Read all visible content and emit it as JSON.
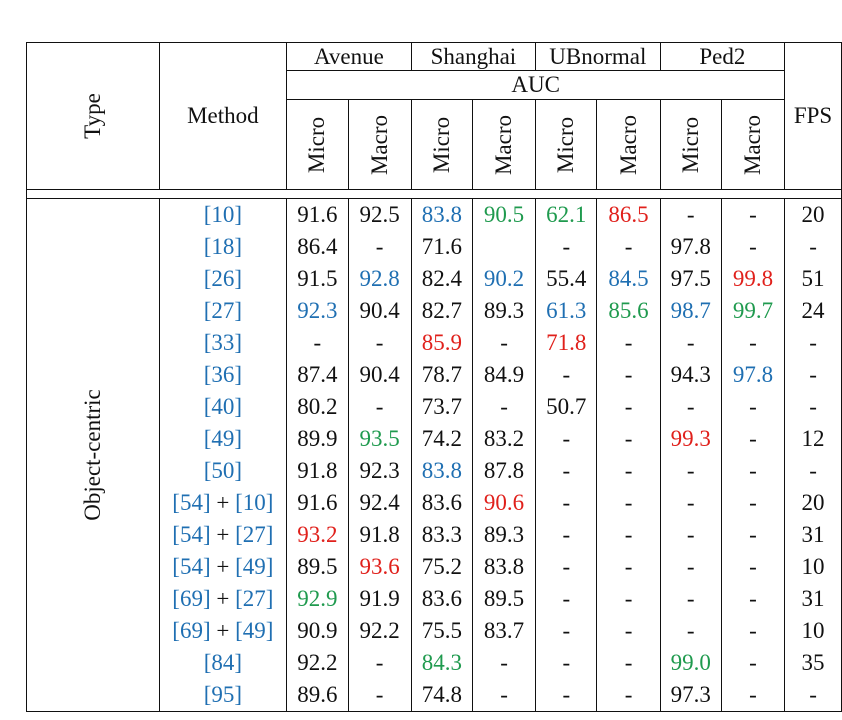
{
  "colors": {
    "best": "#e0201b",
    "second": "#1f9a4e",
    "third": "#1f6fb2",
    "citation": "#1f6fb2",
    "text": "#111111"
  },
  "header": {
    "type_label": "Type",
    "method_label": "Method",
    "metric_label": "AUC",
    "fps_label": "FPS",
    "datasets": [
      "Avenue",
      "Shanghai",
      "UBnormal",
      "Ped2"
    ],
    "sub_labels": [
      "Micro",
      "Macro",
      "Micro",
      "Macro",
      "Micro",
      "Macro",
      "Micro",
      "Macro"
    ]
  },
  "group": {
    "label": "Object-centric"
  },
  "rows": [
    {
      "method": [
        {
          "t": "[10]",
          "c": "cite"
        }
      ],
      "cells": [
        {
          "v": "91.6"
        },
        {
          "v": "92.5"
        },
        {
          "v": "83.8",
          "c": "blue"
        },
        {
          "v": "90.5",
          "c": "green"
        },
        {
          "v": "62.1",
          "c": "green"
        },
        {
          "v": "86.5",
          "c": "red"
        },
        {
          "v": "-"
        },
        {
          "v": "-"
        },
        {
          "v": "20"
        }
      ]
    },
    {
      "method": [
        {
          "t": "[18]",
          "c": "cite"
        }
      ],
      "cells": [
        {
          "v": "86.4"
        },
        {
          "v": "-"
        },
        {
          "v": "71.6"
        },
        {
          "v": ""
        },
        {
          "v": "-"
        },
        {
          "v": "-"
        },
        {
          "v": "97.8"
        },
        {
          "v": "-"
        },
        {
          "v": "-"
        }
      ]
    },
    {
      "method": [
        {
          "t": "[26]",
          "c": "cite"
        }
      ],
      "cells": [
        {
          "v": "91.5"
        },
        {
          "v": "92.8",
          "c": "blue"
        },
        {
          "v": "82.4"
        },
        {
          "v": "90.2",
          "c": "blue"
        },
        {
          "v": "55.4"
        },
        {
          "v": "84.5",
          "c": "blue"
        },
        {
          "v": "97.5"
        },
        {
          "v": "99.8",
          "c": "red"
        },
        {
          "v": "51"
        }
      ]
    },
    {
      "method": [
        {
          "t": "[27]",
          "c": "cite"
        }
      ],
      "cells": [
        {
          "v": "92.3",
          "c": "blue"
        },
        {
          "v": "90.4"
        },
        {
          "v": "82.7"
        },
        {
          "v": "89.3"
        },
        {
          "v": "61.3",
          "c": "blue"
        },
        {
          "v": "85.6",
          "c": "green"
        },
        {
          "v": "98.7",
          "c": "blue"
        },
        {
          "v": "99.7",
          "c": "green"
        },
        {
          "v": "24"
        }
      ]
    },
    {
      "method": [
        {
          "t": "[33]",
          "c": "cite"
        }
      ],
      "cells": [
        {
          "v": "-"
        },
        {
          "v": "-"
        },
        {
          "v": "85.9",
          "c": "red"
        },
        {
          "v": "-"
        },
        {
          "v": "71.8",
          "c": "red"
        },
        {
          "v": "-"
        },
        {
          "v": "-"
        },
        {
          "v": "-"
        },
        {
          "v": "-"
        }
      ]
    },
    {
      "method": [
        {
          "t": "[36]",
          "c": "cite"
        }
      ],
      "cells": [
        {
          "v": "87.4"
        },
        {
          "v": "90.4"
        },
        {
          "v": "78.7"
        },
        {
          "v": "84.9"
        },
        {
          "v": "-"
        },
        {
          "v": "-"
        },
        {
          "v": "94.3"
        },
        {
          "v": "97.8",
          "c": "blue"
        },
        {
          "v": "-"
        }
      ]
    },
    {
      "method": [
        {
          "t": "[40]",
          "c": "cite"
        }
      ],
      "cells": [
        {
          "v": "80.2"
        },
        {
          "v": "-"
        },
        {
          "v": "73.7"
        },
        {
          "v": "-"
        },
        {
          "v": "50.7"
        },
        {
          "v": "-"
        },
        {
          "v": "-"
        },
        {
          "v": "-"
        },
        {
          "v": "-"
        }
      ]
    },
    {
      "method": [
        {
          "t": "[49]",
          "c": "cite"
        }
      ],
      "cells": [
        {
          "v": "89.9"
        },
        {
          "v": "93.5",
          "c": "green"
        },
        {
          "v": "74.2"
        },
        {
          "v": "83.2"
        },
        {
          "v": "-"
        },
        {
          "v": "-"
        },
        {
          "v": "99.3",
          "c": "red"
        },
        {
          "v": "-"
        },
        {
          "v": "12"
        }
      ]
    },
    {
      "method": [
        {
          "t": "[50]",
          "c": "cite"
        }
      ],
      "cells": [
        {
          "v": "91.8"
        },
        {
          "v": "92.3"
        },
        {
          "v": "83.8",
          "c": "blue"
        },
        {
          "v": "87.8"
        },
        {
          "v": "-"
        },
        {
          "v": "-"
        },
        {
          "v": "-"
        },
        {
          "v": "-"
        },
        {
          "v": "-"
        }
      ]
    },
    {
      "method": [
        {
          "t": "[54]",
          "c": "cite"
        },
        {
          "t": " + "
        },
        {
          "t": "[10]",
          "c": "cite"
        }
      ],
      "cells": [
        {
          "v": "91.6"
        },
        {
          "v": "92.4"
        },
        {
          "v": "83.6"
        },
        {
          "v": "90.6",
          "c": "red"
        },
        {
          "v": "-"
        },
        {
          "v": "-"
        },
        {
          "v": "-"
        },
        {
          "v": "-"
        },
        {
          "v": "20"
        }
      ]
    },
    {
      "method": [
        {
          "t": "[54]",
          "c": "cite"
        },
        {
          "t": " + "
        },
        {
          "t": "[27]",
          "c": "cite"
        }
      ],
      "cells": [
        {
          "v": "93.2",
          "c": "red"
        },
        {
          "v": "91.8"
        },
        {
          "v": "83.3"
        },
        {
          "v": "89.3"
        },
        {
          "v": "-"
        },
        {
          "v": "-"
        },
        {
          "v": "-"
        },
        {
          "v": "-"
        },
        {
          "v": "31"
        }
      ]
    },
    {
      "method": [
        {
          "t": "[54]",
          "c": "cite"
        },
        {
          "t": " + "
        },
        {
          "t": "[49]",
          "c": "cite"
        }
      ],
      "cells": [
        {
          "v": "89.5"
        },
        {
          "v": "93.6",
          "c": "red"
        },
        {
          "v": "75.2"
        },
        {
          "v": "83.8"
        },
        {
          "v": "-"
        },
        {
          "v": "-"
        },
        {
          "v": "-"
        },
        {
          "v": "-"
        },
        {
          "v": "10"
        }
      ]
    },
    {
      "method": [
        {
          "t": "[69]",
          "c": "cite"
        },
        {
          "t": " + "
        },
        {
          "t": "[27]",
          "c": "cite"
        }
      ],
      "cells": [
        {
          "v": "92.9",
          "c": "green"
        },
        {
          "v": "91.9"
        },
        {
          "v": "83.6"
        },
        {
          "v": "89.5"
        },
        {
          "v": "-"
        },
        {
          "v": "-"
        },
        {
          "v": "-"
        },
        {
          "v": "-"
        },
        {
          "v": "31"
        }
      ]
    },
    {
      "method": [
        {
          "t": "[69]",
          "c": "cite"
        },
        {
          "t": " + "
        },
        {
          "t": "[49]",
          "c": "cite"
        }
      ],
      "cells": [
        {
          "v": "90.9"
        },
        {
          "v": "92.2"
        },
        {
          "v": "75.5"
        },
        {
          "v": "83.7"
        },
        {
          "v": "-"
        },
        {
          "v": "-"
        },
        {
          "v": "-"
        },
        {
          "v": "-"
        },
        {
          "v": "10"
        }
      ]
    },
    {
      "method": [
        {
          "t": "[84]",
          "c": "cite"
        }
      ],
      "cells": [
        {
          "v": "92.2"
        },
        {
          "v": "-"
        },
        {
          "v": "84.3",
          "c": "green"
        },
        {
          "v": "-"
        },
        {
          "v": "-"
        },
        {
          "v": "-"
        },
        {
          "v": "99.0",
          "c": "green"
        },
        {
          "v": "-"
        },
        {
          "v": "35"
        }
      ]
    },
    {
      "method": [
        {
          "t": "[95]",
          "c": "cite"
        }
      ],
      "cells": [
        {
          "v": "89.6"
        },
        {
          "v": "-"
        },
        {
          "v": "74.8"
        },
        {
          "v": "-"
        },
        {
          "v": "-"
        },
        {
          "v": "-"
        },
        {
          "v": "97.3"
        },
        {
          "v": "-"
        },
        {
          "v": "-"
        }
      ]
    }
  ]
}
